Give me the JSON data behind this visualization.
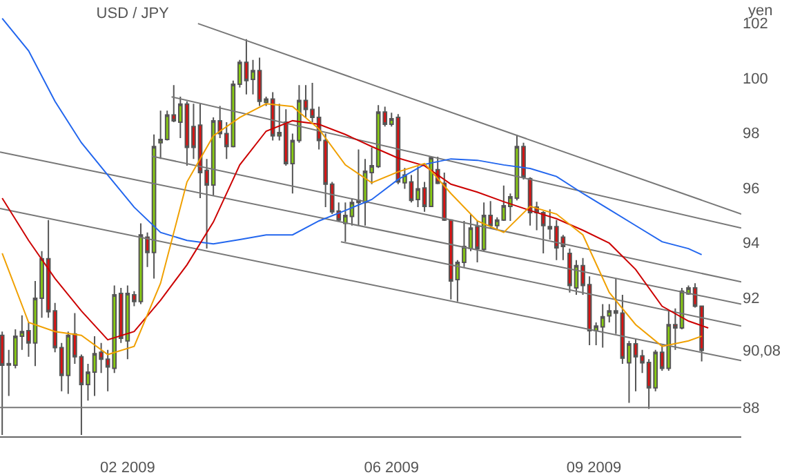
{
  "chart_data": {
    "type": "candlestick",
    "title": "USD / JPY",
    "ylabel": "yen",
    "x": [
      "2008-12-06",
      "2008-12-09",
      "2008-12-12",
      "2008-12-15",
      "2008-12-18",
      "2008-12-21",
      "2008-12-24",
      "2008-12-27",
      "2008-12-30",
      "2009-01-02",
      "2009-01-05",
      "2009-01-08",
      "2009-01-11",
      "2009-01-14",
      "2009-01-17",
      "2009-01-20",
      "2009-01-23",
      "2009-01-26",
      "2009-01-29",
      "2009-02-01",
      "2009-02-04",
      "2009-02-07",
      "2009-02-10",
      "2009-02-13",
      "2009-02-16",
      "2009-02-19",
      "2009-02-22",
      "2009-02-25",
      "2009-02-28",
      "2009-03-03",
      "2009-03-06",
      "2009-03-09",
      "2009-03-12",
      "2009-03-15",
      "2009-03-18",
      "2009-03-21",
      "2009-03-24",
      "2009-03-27",
      "2009-03-30",
      "2009-04-02",
      "2009-04-05",
      "2009-04-08",
      "2009-04-11",
      "2009-04-14",
      "2009-04-17",
      "2009-04-20",
      "2009-04-23",
      "2009-04-26",
      "2009-04-29",
      "2009-05-02",
      "2009-05-05",
      "2009-05-08",
      "2009-05-11",
      "2009-05-14",
      "2009-05-17",
      "2009-05-20",
      "2009-05-23",
      "2009-05-26",
      "2009-05-29",
      "2009-06-01",
      "2009-06-04",
      "2009-06-07",
      "2009-06-10",
      "2009-06-13",
      "2009-06-16",
      "2009-06-19",
      "2009-06-22",
      "2009-06-25",
      "2009-06-28",
      "2009-07-01",
      "2009-07-04",
      "2009-07-07",
      "2009-07-10",
      "2009-07-13",
      "2009-07-16",
      "2009-07-19",
      "2009-07-22",
      "2009-07-25",
      "2009-07-28",
      "2009-07-31",
      "2009-08-03",
      "2009-08-06",
      "2009-08-09",
      "2009-08-12",
      "2009-08-15",
      "2009-08-18",
      "2009-08-21",
      "2009-08-24",
      "2009-08-27",
      "2009-08-30",
      "2009-09-02",
      "2009-09-05",
      "2009-09-08",
      "2009-09-11",
      "2009-09-14",
      "2009-09-17",
      "2009-09-20",
      "2009-09-23",
      "2009-09-26",
      "2009-09-29",
      "2009-10-02",
      "2009-10-05",
      "2009-10-08",
      "2009-10-11",
      "2009-10-14",
      "2009-10-17",
      "2009-10-20"
    ],
    "ohlc": [
      [
        90.63,
        90.77,
        87.0,
        89.54
      ],
      [
        89.6,
        90.1,
        88.42,
        89.55
      ],
      [
        89.54,
        90.85,
        89.43,
        90.6
      ],
      [
        90.6,
        91.36,
        90.1,
        90.77
      ],
      [
        90.8,
        91.1,
        89.85,
        90.35
      ],
      [
        90.35,
        92.61,
        89.51,
        91.98
      ],
      [
        91.98,
        93.7,
        91.27,
        93.42
      ],
      [
        93.42,
        94.83,
        91.27,
        91.49
      ],
      [
        91.52,
        91.81,
        90.01,
        90.18
      ],
      [
        90.18,
        90.35,
        88.59,
        89.17
      ],
      [
        89.17,
        90.77,
        88.5,
        90.63
      ],
      [
        90.68,
        91.44,
        89.59,
        89.85
      ],
      [
        89.85,
        89.93,
        87.0,
        88.84
      ],
      [
        88.84,
        89.59,
        88.25,
        89.29
      ],
      [
        89.29,
        90.6,
        88.42,
        89.96
      ],
      [
        90.01,
        90.35,
        89.26,
        89.76
      ],
      [
        89.76,
        90.1,
        88.59,
        89.48
      ],
      [
        89.43,
        92.45,
        89.26,
        92.11
      ],
      [
        92.16,
        92.36,
        90.35,
        90.52
      ],
      [
        90.43,
        92.45,
        89.76,
        92.16
      ],
      [
        92.11,
        92.24,
        91.69,
        91.86
      ],
      [
        91.86,
        94.71,
        91.77,
        94.29
      ],
      [
        94.21,
        94.38,
        93.12,
        93.65
      ],
      [
        93.65,
        97.95,
        92.7,
        97.51
      ],
      [
        97.65,
        98.82,
        97.06,
        97.77
      ],
      [
        97.77,
        98.82,
        97.73,
        98.66
      ],
      [
        98.66,
        99.75,
        98.4,
        98.45
      ],
      [
        98.4,
        99.33,
        97.82,
        99.06
      ],
      [
        99.06,
        99.16,
        96.81,
        97.48
      ],
      [
        98.24,
        99.07,
        97.06,
        97.48
      ],
      [
        98.29,
        99.07,
        95.63,
        96.56
      ],
      [
        96.64,
        97.06,
        93.79,
        96.11
      ],
      [
        96.11,
        98.57,
        95.72,
        98.45
      ],
      [
        98.45,
        98.99,
        97.82,
        97.98
      ],
      [
        97.98,
        98.4,
        97.06,
        97.51
      ],
      [
        97.51,
        99.91,
        97.48,
        99.78
      ],
      [
        99.78,
        100.67,
        99.66,
        100.58
      ],
      [
        100.58,
        101.42,
        99.41,
        99.91
      ],
      [
        99.96,
        100.67,
        99.41,
        100.28
      ],
      [
        100.28,
        100.75,
        98.99,
        99.16
      ],
      [
        99.12,
        99.33,
        98.99,
        99.24
      ],
      [
        99.24,
        99.49,
        97.73,
        97.9
      ],
      [
        97.9,
        99.07,
        97.73,
        98.02
      ],
      [
        98.4,
        98.87,
        96.81,
        96.89
      ],
      [
        96.89,
        97.98,
        95.8,
        97.73
      ],
      [
        97.73,
        99.75,
        97.65,
        99.19
      ],
      [
        99.19,
        99.75,
        98.57,
        98.86
      ],
      [
        98.86,
        99.83,
        98.4,
        98.57
      ],
      [
        98.57,
        98.96,
        97.4,
        97.73
      ],
      [
        97.73,
        97.98,
        95.3,
        96.14
      ],
      [
        96.14,
        96.22,
        95.05,
        95.13
      ],
      [
        95.16,
        95.47,
        94.8,
        94.83
      ],
      [
        94.71,
        95.47,
        94.04,
        95.0
      ],
      [
        94.96,
        95.63,
        94.63,
        95.47
      ],
      [
        95.47,
        97.4,
        94.63,
        95.55
      ],
      [
        95.47,
        97.06,
        94.63,
        96.61
      ],
      [
        96.56,
        97.48,
        96.14,
        96.81
      ],
      [
        96.78,
        99.02,
        96.73,
        98.77
      ],
      [
        98.77,
        98.96,
        98.24,
        98.32
      ],
      [
        98.32,
        98.74,
        98.24,
        98.52
      ],
      [
        98.57,
        98.69,
        96.14,
        96.22
      ],
      [
        96.19,
        96.73,
        95.97,
        96.47
      ],
      [
        96.22,
        96.47,
        95.47,
        95.55
      ],
      [
        95.58,
        96.78,
        95.3,
        95.97
      ],
      [
        96.0,
        96.22,
        95.13,
        95.33
      ],
      [
        95.33,
        97.14,
        95.3,
        97.11
      ],
      [
        96.67,
        97.14,
        96.14,
        96.17
      ],
      [
        96.17,
        96.56,
        94.8,
        94.83
      ],
      [
        94.83,
        94.83,
        91.94,
        92.61
      ],
      [
        92.66,
        93.37,
        91.86,
        93.29
      ],
      [
        93.29,
        94.8,
        93.12,
        93.87
      ],
      [
        93.79,
        95.05,
        93.7,
        94.54
      ],
      [
        94.59,
        94.8,
        93.29,
        93.79
      ],
      [
        93.76,
        95.47,
        93.7,
        95.0
      ],
      [
        95.0,
        95.52,
        94.54,
        94.63
      ],
      [
        94.63,
        94.93,
        94.46,
        94.83
      ],
      [
        94.83,
        96.09,
        94.8,
        95.35
      ],
      [
        95.33,
        95.8,
        94.8,
        95.68
      ],
      [
        95.63,
        97.93,
        95.55,
        97.51
      ],
      [
        97.51,
        97.65,
        96.31,
        96.39
      ],
      [
        96.34,
        96.39,
        94.63,
        95.1
      ],
      [
        95.3,
        95.5,
        94.46,
        95.1
      ],
      [
        95.1,
        95.16,
        93.62,
        94.63
      ],
      [
        94.59,
        95.22,
        94.12,
        94.51
      ],
      [
        94.59,
        94.83,
        93.37,
        93.82
      ],
      [
        94.21,
        94.29,
        93.37,
        93.87
      ],
      [
        93.62,
        93.79,
        92.19,
        92.45
      ],
      [
        92.36,
        93.37,
        92.11,
        93.17
      ],
      [
        93.17,
        93.45,
        92.11,
        92.45
      ],
      [
        92.48,
        92.78,
        90.27,
        90.8
      ],
      [
        90.8,
        91.1,
        90.27,
        90.97
      ],
      [
        90.94,
        91.77,
        90.18,
        91.31
      ],
      [
        91.34,
        91.77,
        91.1,
        91.52
      ],
      [
        91.52,
        92.7,
        90.68,
        91.44
      ],
      [
        91.44,
        92.11,
        89.59,
        89.8
      ],
      [
        89.63,
        90.43,
        88.17,
        90.32
      ],
      [
        90.32,
        90.52,
        88.59,
        89.85
      ],
      [
        89.88,
        90.1,
        89.26,
        89.63
      ],
      [
        89.64,
        89.76,
        87.95,
        88.72
      ],
      [
        88.72,
        90.1,
        88.59,
        90.01
      ],
      [
        90.01,
        90.27,
        89.34,
        89.43
      ],
      [
        89.43,
        91.52,
        89.34,
        91.02
      ],
      [
        91.02,
        91.61,
        90.1,
        90.9
      ],
      [
        90.9,
        92.36,
        90.85,
        92.24
      ],
      [
        92.14,
        92.45,
        92.11,
        92.36
      ],
      [
        92.36,
        92.53,
        91.64,
        91.69
      ],
      [
        91.69,
        91.69,
        89.68,
        90.08
      ]
    ],
    "series": [
      {
        "type": "line",
        "color": "#777777",
        "x": [
          "2009-03-05",
          "2009-11-07"
        ],
        "values": [
          101.99,
          95.05
        ]
      },
      {
        "type": "line",
        "color": "#777777",
        "x": [
          "2009-02-21",
          "2009-11-07"
        ],
        "values": [
          99.32,
          94.54
        ]
      },
      {
        "type": "line",
        "color": "#777777",
        "x": [
          "2008-12-05",
          "2009-11-07"
        ],
        "values": [
          97.31,
          91.77
        ]
      },
      {
        "type": "line",
        "color": "#777777",
        "x": [
          "2009-02-12",
          "2009-11-07"
        ],
        "values": [
          97.16,
          92.58
        ]
      },
      {
        "type": "line",
        "color": "#777777",
        "x": [
          "2008-12-05",
          "2009-11-07"
        ],
        "values": [
          95.25,
          89.71
        ]
      },
      {
        "type": "line",
        "color": "#777777",
        "x": [
          "2009-05-09",
          "2009-11-07"
        ],
        "values": [
          94.04,
          90.97
        ]
      },
      {
        "type": "line",
        "color": "#2266ee",
        "x": [
          "2008-12-06",
          "2008-12-18",
          "2008-12-30",
          "2009-01-11",
          "2009-01-23",
          "2009-02-04",
          "2009-02-16",
          "2009-02-28",
          "2009-03-12",
          "2009-03-24",
          "2009-04-05",
          "2009-04-17",
          "2009-04-29",
          "2009-05-11",
          "2009-05-23",
          "2009-06-04",
          "2009-06-16",
          "2009-06-28",
          "2009-07-10",
          "2009-07-22",
          "2009-08-03",
          "2009-08-15",
          "2009-08-27",
          "2009-09-08",
          "2009-09-20",
          "2009-10-02",
          "2009-10-14",
          "2009-10-20"
        ],
        "values": [
          102.18,
          101.0,
          99.16,
          97.65,
          96.47,
          95.3,
          94.38,
          94.09,
          93.96,
          94.12,
          94.29,
          94.29,
          94.8,
          95.18,
          95.58,
          96.31,
          96.86,
          97.06,
          97.01,
          96.84,
          96.71,
          96.42,
          95.8,
          95.22,
          94.63,
          94.04,
          93.79,
          93.57
        ]
      },
      {
        "type": "line",
        "color": "#cc0000",
        "x": [
          "2008-12-06",
          "2008-12-18",
          "2008-12-30",
          "2009-01-11",
          "2009-01-23",
          "2009-02-04",
          "2009-02-16",
          "2009-02-28",
          "2009-03-12",
          "2009-03-24",
          "2009-04-05",
          "2009-04-17",
          "2009-04-29",
          "2009-05-11",
          "2009-05-23",
          "2009-06-04",
          "2009-06-16",
          "2009-06-28",
          "2009-07-10",
          "2009-07-22",
          "2009-08-03",
          "2009-08-15",
          "2009-08-27",
          "2009-09-08",
          "2009-09-20",
          "2009-10-02",
          "2009-10-14",
          "2009-10-23"
        ],
        "values": [
          95.63,
          94.09,
          92.7,
          91.52,
          90.47,
          90.77,
          91.91,
          93.2,
          94.76,
          96.84,
          98.07,
          98.45,
          98.32,
          97.95,
          97.51,
          97.09,
          96.81,
          96.14,
          95.85,
          95.5,
          95.18,
          94.88,
          94.46,
          93.99,
          93.03,
          91.69,
          91.15,
          90.9
        ]
      },
      {
        "type": "line",
        "color": "#f0a000",
        "x": [
          "2008-12-06",
          "2008-12-18",
          "2008-12-30",
          "2009-01-11",
          "2009-01-23",
          "2009-02-04",
          "2009-02-16",
          "2009-02-28",
          "2009-03-12",
          "2009-03-24",
          "2009-04-05",
          "2009-04-17",
          "2009-04-29",
          "2009-05-11",
          "2009-05-23",
          "2009-06-04",
          "2009-06-16",
          "2009-06-28",
          "2009-07-10",
          "2009-07-22",
          "2009-08-03",
          "2009-08-15",
          "2009-08-27",
          "2009-09-08",
          "2009-09-20",
          "2009-10-02",
          "2009-10-14",
          "2009-10-20"
        ],
        "values": [
          93.62,
          91.1,
          90.77,
          90.63,
          89.93,
          90.23,
          92.53,
          96.22,
          97.9,
          98.57,
          99.07,
          98.97,
          98.15,
          96.84,
          96.19,
          96.59,
          96.89,
          95.8,
          94.8,
          94.38,
          95.33,
          95.05,
          94.29,
          92.19,
          91.02,
          90.23,
          90.43,
          90.6
        ]
      }
    ],
    "xlim": [
      "2008-12-05",
      "2009-11-07"
    ],
    "xticks": [
      {
        "value": "2009-02-01",
        "label": "02 2009"
      },
      {
        "value": "2009-06-01",
        "label": "06 2009"
      },
      {
        "value": "2009-09-01",
        "label": "09 2009"
      }
    ],
    "ylim": [
      86.95,
      102.85
    ],
    "yticks": [
      88,
      {
        "value": 90.08,
        "label": "90,08"
      },
      92,
      94,
      96,
      98,
      100,
      102
    ],
    "ref_lines": [
      {
        "axis": "y",
        "value": 88,
        "color": "#777777"
      }
    ],
    "grid": false
  }
}
